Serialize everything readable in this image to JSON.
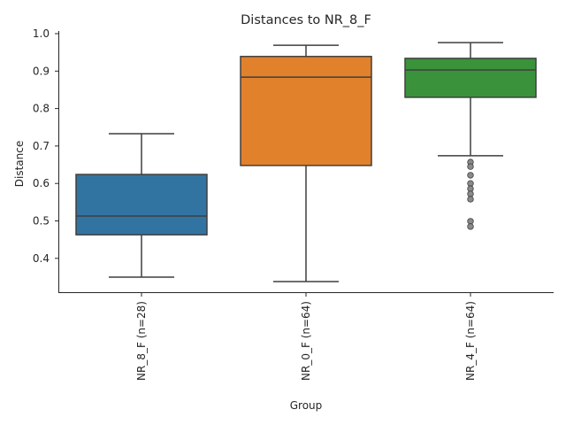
{
  "chart_data": {
    "type": "box",
    "title": "Distances to NR_8_F",
    "xlabel": "Group",
    "ylabel": "Distance",
    "ylim": [
      0.31,
      1.007
    ],
    "yticks": [
      "0.4",
      "0.5",
      "0.6",
      "0.7",
      "0.8",
      "0.9",
      "1.0"
    ],
    "grid": false,
    "categories": [
      "NR_8_F (n=28)",
      "NR_0_F (n=64)",
      "NR_4_F (n=64)"
    ],
    "boxes": [
      {
        "name": "NR_8_F (n=28)",
        "color": "#3274a1",
        "whisker_low": 0.35,
        "q1": 0.463,
        "median": 0.513,
        "q3": 0.624,
        "whisker_high": 0.733,
        "outliers": []
      },
      {
        "name": "NR_0_F (n=64)",
        "color": "#e1812c",
        "whisker_low": 0.338,
        "q1": 0.648,
        "median": 0.884,
        "q3": 0.939,
        "whisker_high": 0.969,
        "outliers": []
      },
      {
        "name": "NR_4_F (n=64)",
        "color": "#3a923a",
        "whisker_low": 0.674,
        "q1": 0.83,
        "median": 0.903,
        "q3": 0.934,
        "whisker_high": 0.976,
        "outliers": [
          0.657,
          0.645,
          0.622,
          0.6,
          0.586,
          0.572,
          0.558,
          0.499,
          0.485
        ]
      }
    ]
  }
}
